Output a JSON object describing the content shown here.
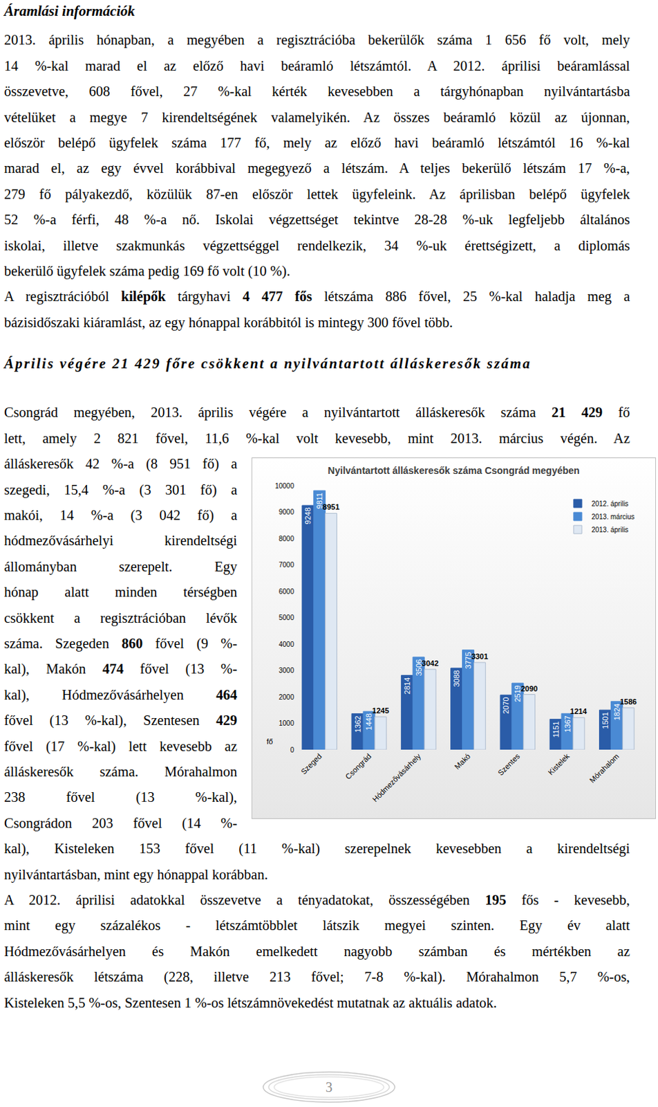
{
  "sections": [
    {
      "title": "Áramlási információk",
      "paragraphs": [
        [
          [
            "2013. április hónapban, a megyében a regisztrációba bekerülők száma 1 656 fő volt, mely"
          ],
          [
            "14 %-kal marad el az előző havi beáramló létszámtól. A 2012. áprilisi beáramlással"
          ],
          [
            "összevetve, 608 fővel, 27 %-kal kérték kevesebben a tárgyhónapban nyilvántartásba"
          ],
          [
            "vételüket a megye 7 kirendeltségének valamelyikén. Az összes beáramló közül az újonnan,"
          ],
          [
            "először belépő ügyfelek száma 177 fő, mely az előző havi beáramló létszámtól 16 %-kal"
          ],
          [
            "marad el, az egy évvel korábbival megegyező a létszám. A teljes bekerülő létszám 17 %-a,"
          ],
          [
            "279 fő pályakezdő, közülük 87-en először lettek ügyfeleink. Az áprilisban belépő ügyfelek"
          ],
          [
            "52 %-a férfi, 48 %-a nő. Iskolai végzettséget tekintve 28-28 %-uk legfeljebb általános"
          ],
          [
            "iskolai, illetve szakmunkás végzettséggel rendelkezik, 34 %-uk érettségizett, a diplomás"
          ],
          [
            "bekerülő ügyfelek száma pedig 169 fő volt (10 %)."
          ]
        ],
        [
          [
            "A regisztrációból ",
            {
              "text": "kilépők",
              "bold": true
            },
            " tárgyhavi ",
            {
              "text": "4 477 fős",
              "bold": true
            },
            " létszáma 886 fővel, 25 %-kal haladja meg a"
          ],
          [
            "bázisidőszaki kiáramlást, az egy hónappal korábbitól is mintegy 300 fővel több."
          ]
        ]
      ]
    },
    {
      "title": "Április végére 21 429 főre csökkent a nyilvántartott álláskeresők száma",
      "paragraphs": [
        [
          [
            "Csongrád megyében, 2013. április végére a nyilvántartott álláskeresők száma ",
            {
              "text": "21 429",
              "bold": true
            },
            " fő"
          ],
          [
            "lett, amely 2 821 fővel, 11,6 %-kal volt kevesebb, mint 2013. március végén. Az"
          ],
          [
            "álláskeresők 42 %-a (8 951 fő) a"
          ],
          [
            "szegedi, 15,4 %-a (3 301 fő) a"
          ],
          [
            "makói, 14 %-a (3 042 fő) a"
          ],
          [
            "hódmezővásárhelyi kirendeltségi"
          ],
          [
            "állományban szerepelt. Egy"
          ],
          [
            "hónap alatt minden térségben"
          ],
          [
            "csökkent a regisztrációban lévők"
          ],
          [
            "száma. Szegeden ",
            {
              "text": "860",
              "bold": true
            },
            " fővel (9 %-"
          ],
          [
            "kal), Makón ",
            {
              "text": "474",
              "bold": true
            },
            " fővel (13 %-"
          ],
          [
            "kal), Hódmezővásárhelyen ",
            {
              "text": "464",
              "bold": true
            }
          ],
          [
            "fővel (13 %-kal), Szentesen ",
            {
              "text": "429",
              "bold": true
            }
          ],
          [
            "fővel (17 %-kal) lett kevesebb az"
          ],
          [
            "álláskeresők száma. Mórahalmon"
          ],
          [
            "238 fővel (13 %-kal),"
          ],
          [
            "Csongrádon 203 fővel (14 %-"
          ],
          [
            "kal), Kisteleken 153 fővel (11 %-kal) szerepelnek kevesebben a kirendeltségi"
          ],
          [
            "nyilvántartásban, mint egy hónappal korábban."
          ]
        ],
        [
          [
            "A 2012. áprilisi adatokkal összevetve a tényadatokat, összességében ",
            {
              "text": "195",
              "bold": true
            },
            " fős - kevesebb,"
          ],
          [
            "mint egy százalékos - létszámtöbblet látszik megyei szinten. Egy év alatt"
          ],
          [
            "Hódmezővásárhelyen és Makón emelkedett nagyobb számban és mértékben az"
          ],
          [
            "álláskeresők létszáma (228, illetve 213 fővel; 7-8 %-kal). Mórahalmon 5,7 %-os,"
          ],
          [
            "Kisteleken 5,5 %-os, Szentesen 1 %-os létszámnövekedést mutatnak az aktuális adatok."
          ]
        ]
      ]
    }
  ],
  "chart_data": {
    "type": "bar",
    "title": "Nyilvántartott álláskeresők száma Csongrád megyében",
    "y_label": "fő",
    "categories": [
      "Szeged",
      "Csongrád",
      "Hódmezővásárhely",
      "Makó",
      "Szentes",
      "Kistelek",
      "Mórahalom"
    ],
    "series": [
      {
        "name": "2012. április",
        "color": "#2a5ca8",
        "values": [
          9248,
          1362,
          2814,
          3088,
          2070,
          1151,
          1501
        ]
      },
      {
        "name": "2013. március",
        "color": "#4a8ad4",
        "values": [
          9811,
          1448,
          3506,
          3775,
          2519,
          1367,
          1824
        ]
      },
      {
        "name": "2013. április",
        "color": "#dfe8f3",
        "values": [
          8951,
          1245,
          3042,
          3301,
          2090,
          1214,
          1586
        ]
      }
    ],
    "ylim": [
      0,
      10000
    ],
    "yticks": [
      0,
      1000,
      2000,
      3000,
      4000,
      5000,
      6000,
      7000,
      8000,
      9000,
      10000
    ],
    "grid": false,
    "legend": "top right",
    "data_labels": true
  },
  "footer": {
    "page": 3
  }
}
